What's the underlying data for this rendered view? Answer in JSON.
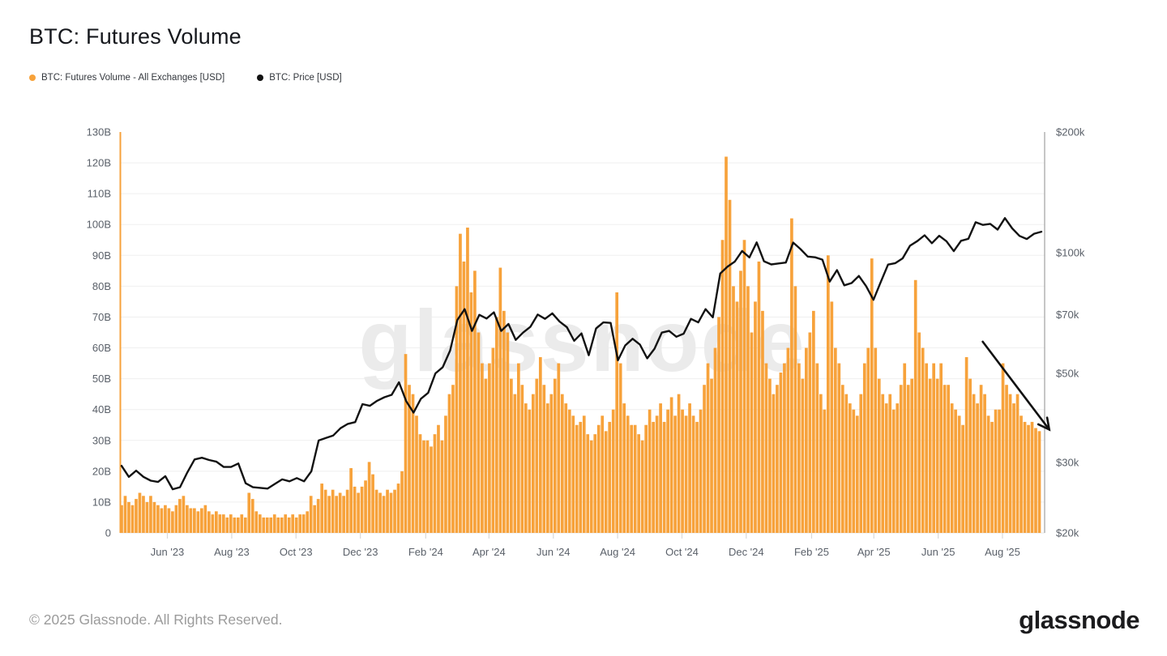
{
  "header": {
    "title": "BTC: Futures Volume"
  },
  "legend": {
    "items": [
      {
        "label": "BTC: Futures Volume - All Exchanges [USD]",
        "color": "#f7a23b"
      },
      {
        "label": "BTC: Price [USD]",
        "color": "#121212"
      }
    ]
  },
  "watermark": {
    "text": "glassnode"
  },
  "footer": {
    "copyright": "© 2025 Glassnode. All Rights Reserved.",
    "logo_text": "glassnode"
  },
  "chart_data": {
    "type": "bar+line",
    "title": "BTC: Futures Volume",
    "x_range": {
      "start": "mid-Apr 2023",
      "end": "early-Sep 2025"
    },
    "grid": "horizontal",
    "colors": {
      "grid": "#efefef",
      "axis_text": "#5a6069",
      "left_axis_line": "#f7a23b",
      "right_axis_line": "#b3b3b3",
      "x_tick": "#d9d9d9",
      "watermark": "#ebebeb",
      "arrow": "#111111"
    },
    "x_tick_labels": [
      {
        "label": "Jun '23",
        "t": 0.0513
      },
      {
        "label": "Aug '23",
        "t": 0.1209
      },
      {
        "label": "Oct '23",
        "t": 0.1904
      },
      {
        "label": "Dec '23",
        "t": 0.26
      },
      {
        "label": "Feb '24",
        "t": 0.3307
      },
      {
        "label": "Apr '24",
        "t": 0.3991
      },
      {
        "label": "Jun '24",
        "t": 0.4687
      },
      {
        "label": "Aug '24",
        "t": 0.5382
      },
      {
        "label": "Oct '24",
        "t": 0.6078
      },
      {
        "label": "Dec '24",
        "t": 0.6773
      },
      {
        "label": "Feb '25",
        "t": 0.748
      },
      {
        "label": "Apr '25",
        "t": 0.8153
      },
      {
        "label": "Jun '25",
        "t": 0.8849
      },
      {
        "label": "Aug '25",
        "t": 0.9544
      }
    ],
    "left_axis": {
      "title": "BTC Futures Volume [USD]",
      "min": 0,
      "max": 130,
      "tick_step": 10,
      "tick_labels": [
        "0",
        "10B",
        "20B",
        "30B",
        "40B",
        "50B",
        "60B",
        "70B",
        "80B",
        "90B",
        "100B",
        "110B",
        "120B",
        "130B"
      ]
    },
    "right_axis": {
      "title": "BTC Price [USD]",
      "scale": "log",
      "min_k": 20,
      "max_k": 200,
      "ticks": [
        {
          "label": "$200k",
          "k": 200
        },
        {
          "label": "$100k",
          "k": 100
        },
        {
          "label": "$70k",
          "k": 70
        },
        {
          "label": "$50k",
          "k": 50
        },
        {
          "label": "$30k",
          "k": 30
        },
        {
          "label": "$20k",
          "k": 20
        }
      ]
    },
    "series": [
      {
        "name": "BTC: Futures Volume - All Exchanges [USD]",
        "type": "bar",
        "color": "#f7a23b",
        "unit": "billions USD, ~3.5-day buckets",
        "values": [
          9,
          12,
          10,
          9,
          11,
          13,
          12,
          10,
          12,
          10,
          9,
          8,
          9,
          8,
          7,
          9,
          11,
          12,
          9,
          8,
          8,
          7,
          8,
          9,
          7,
          6,
          7,
          6,
          6,
          5,
          6,
          5,
          5,
          6,
          5,
          13,
          11,
          7,
          6,
          5,
          5,
          5,
          6,
          5,
          5,
          6,
          5,
          6,
          5,
          6,
          6,
          7,
          12,
          9,
          11,
          16,
          14,
          12,
          14,
          12,
          13,
          12,
          14,
          21,
          15,
          13,
          15,
          17,
          23,
          19,
          14,
          13,
          12,
          14,
          13,
          14,
          16,
          20,
          58,
          48,
          45,
          38,
          32,
          30,
          30,
          28,
          32,
          35,
          30,
          38,
          45,
          48,
          80,
          97,
          88,
          99,
          78,
          85,
          65,
          55,
          50,
          55,
          60,
          70,
          86,
          72,
          65,
          50,
          45,
          55,
          48,
          42,
          40,
          45,
          50,
          57,
          48,
          42,
          45,
          50,
          55,
          45,
          42,
          40,
          38,
          35,
          36,
          38,
          32,
          30,
          32,
          35,
          38,
          33,
          36,
          40,
          78,
          55,
          42,
          38,
          35,
          35,
          32,
          30,
          35,
          40,
          36,
          38,
          42,
          36,
          40,
          44,
          38,
          45,
          40,
          38,
          42,
          38,
          36,
          40,
          48,
          55,
          50,
          60,
          70,
          95,
          122,
          108,
          80,
          75,
          85,
          95,
          80,
          65,
          75,
          88,
          72,
          55,
          50,
          45,
          48,
          52,
          55,
          60,
          102,
          80,
          55,
          50,
          60,
          65,
          72,
          55,
          45,
          40,
          90,
          75,
          60,
          55,
          48,
          45,
          42,
          40,
          38,
          45,
          55,
          60,
          89,
          60,
          50,
          45,
          42,
          45,
          40,
          42,
          48,
          55,
          48,
          50,
          82,
          65,
          60,
          55,
          50,
          55,
          50,
          55,
          48,
          48,
          42,
          40,
          38,
          35,
          57,
          50,
          45,
          42,
          48,
          45,
          38,
          36,
          40,
          40,
          55,
          48,
          45,
          42,
          45,
          38,
          36,
          35,
          36,
          34,
          33
        ]
      },
      {
        "name": "BTC: Price [USD]",
        "type": "line",
        "color": "#121212",
        "unit": "thousands USD, weekly",
        "values": [
          29.4,
          27.6,
          28.6,
          27.6,
          27.0,
          26.8,
          27.7,
          25.7,
          26.0,
          28.3,
          30.5,
          30.8,
          30.4,
          30.1,
          29.2,
          29.2,
          29.8,
          26.6,
          26.0,
          25.9,
          25.8,
          26.5,
          27.2,
          26.9,
          27.4,
          26.9,
          28.5,
          34.0,
          34.5,
          35.0,
          36.5,
          37.4,
          37.8,
          41.9,
          41.5,
          42.7,
          43.6,
          44.2,
          47.5,
          42.6,
          39.9,
          43.2,
          44.7,
          50.0,
          51.8,
          57.0,
          68.0,
          72.3,
          63.8,
          70.0,
          68.5,
          71.0,
          63.8,
          66.4,
          60.6,
          63.2,
          65.3,
          70.1,
          68.4,
          70.6,
          67.3,
          65.2,
          60.3,
          62.9,
          55.5,
          64.7,
          67.0,
          66.8,
          53.9,
          58.7,
          61.0,
          59.0,
          54.5,
          57.6,
          63.2,
          63.8,
          61.7,
          62.8,
          68.4,
          67.0,
          72.3,
          69.0,
          88.7,
          92.3,
          95.0,
          101.0,
          97.3,
          106.1,
          95.2,
          93.5,
          94.0,
          94.5,
          106.0,
          102.1,
          97.8,
          97.4,
          96.1,
          84.7,
          90.5,
          82.9,
          84.0,
          87.5,
          82.5,
          76.3,
          84.5,
          93.4,
          94.2,
          96.8,
          104.1,
          106.9,
          110.5,
          105.6,
          110.2,
          106.8,
          100.9,
          107.1,
          108.3,
          119.1,
          117.3,
          118.0,
          114.2,
          122.0,
          115.0,
          110.1,
          108.2,
          111.5,
          112.8
        ]
      }
    ],
    "annotation": {
      "type": "arrow",
      "meaning": "declining futures volume trend, Jul-Sep 2025",
      "from": {
        "t": 0.933,
        "volume_b": 62
      },
      "to": {
        "t": 1.005,
        "volume_b": 33.5
      }
    }
  }
}
